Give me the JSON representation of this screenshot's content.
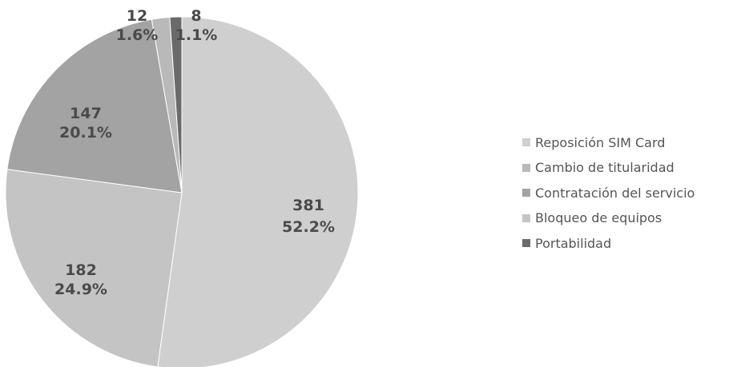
{
  "chart_data": {
    "type": "pie",
    "categories": [
      "Reposición SIM Card",
      "Cambio de titularidad",
      "Contratación del servicio",
      "Bloqueo de equipos",
      "Portabilidad"
    ],
    "values": [
      381,
      12,
      147,
      182,
      8
    ],
    "percent_labels": [
      "52.2%",
      "1.6%",
      "20.1%",
      "24.9%",
      "1.1%"
    ],
    "value_labels": [
      "381",
      "12",
      "147",
      "182",
      "8"
    ],
    "colors": [
      "#cfcfcf",
      "#b9b9b9",
      "#a3a3a3",
      "#c4c4c4",
      "#6a6a6a"
    ],
    "legend_position": "right",
    "title": ""
  },
  "legend": {
    "items": [
      {
        "label": "Reposición SIM Card",
        "color": "#cfcfcf",
        "icon": "square-swatch"
      },
      {
        "label": "Cambio de titularidad",
        "color": "#b9b9b9",
        "icon": "square-swatch"
      },
      {
        "label": "Contratación del servicio",
        "color": "#a3a3a3",
        "icon": "square-swatch"
      },
      {
        "label": "Bloqueo de equipos",
        "color": "#c4c4c4",
        "icon": "square-swatch"
      },
      {
        "label": "Portabilidad",
        "color": "#6a6a6a",
        "icon": "square-swatch"
      }
    ]
  }
}
